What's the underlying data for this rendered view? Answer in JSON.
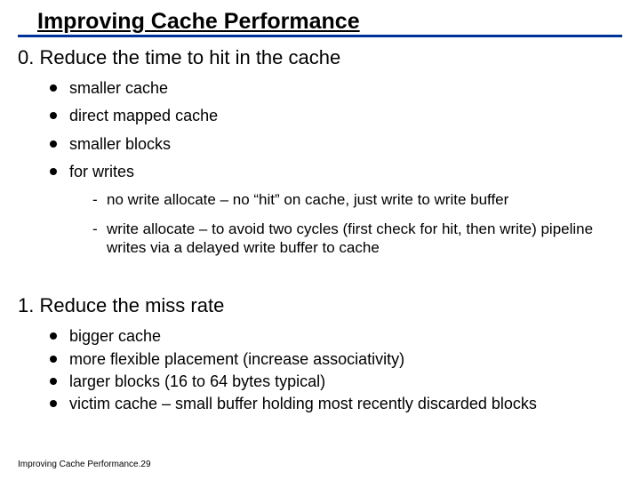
{
  "title": "Improving Cache Performance",
  "sections": [
    {
      "heading": "0. Reduce the time to hit in the cache",
      "tight": false,
      "bullets": [
        {
          "text": "smaller cache"
        },
        {
          "text": "direct mapped cache"
        },
        {
          "text": "smaller blocks"
        },
        {
          "text": "for writes",
          "sub": [
            "no write allocate – no “hit” on cache, just write to write buffer",
            "write allocate – to avoid two cycles (first check for hit, then write) pipeline writes via a delayed write buffer to cache"
          ]
        }
      ]
    },
    {
      "heading": "1. Reduce the miss rate",
      "tight": true,
      "bullets": [
        {
          "text": "bigger cache"
        },
        {
          "text": "more flexible placement (increase associativity)"
        },
        {
          "text": "larger blocks (16 to 64 bytes typical)"
        },
        {
          "text": "victim cache – small buffer holding most recently discarded blocks"
        }
      ]
    }
  ],
  "footer": "Improving Cache Performance.29",
  "colors": {
    "rule": "#003399",
    "text": "#000000",
    "background": "#ffffff"
  }
}
